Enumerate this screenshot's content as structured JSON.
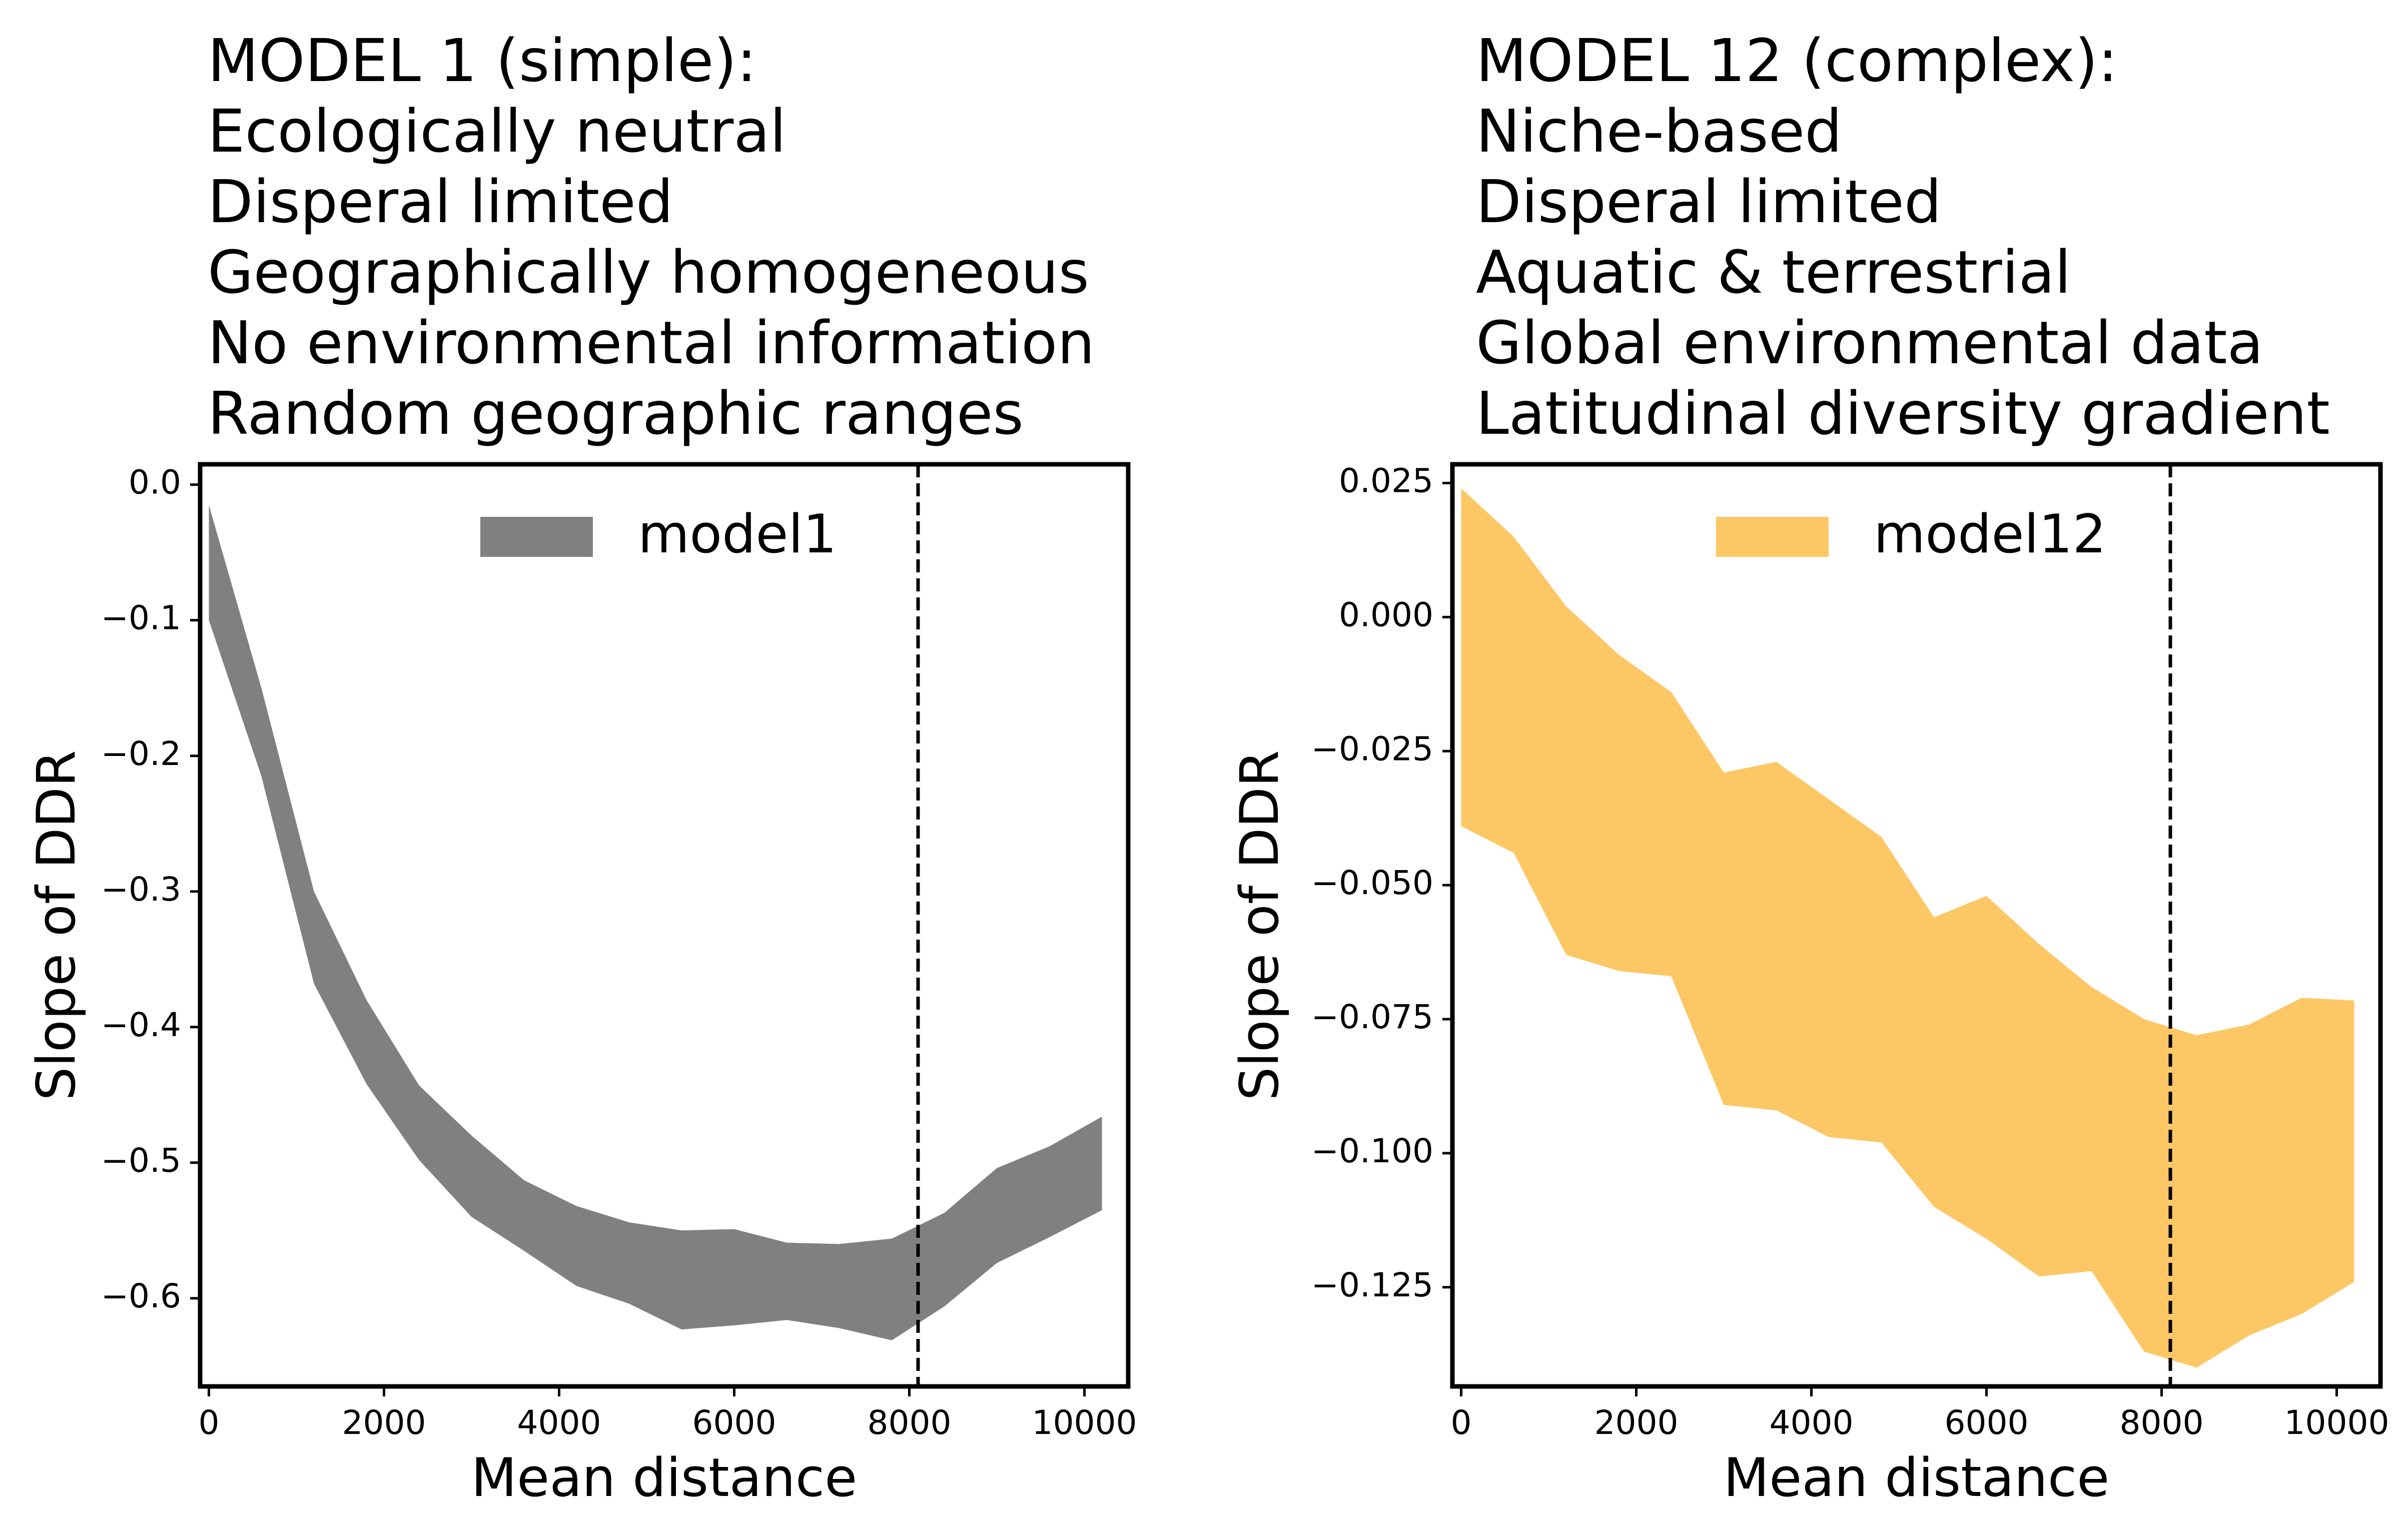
{
  "chart_data": [
    {
      "type": "area",
      "title_lines": [
        "MODEL 1 (simple):",
        "Ecologically neutral",
        "Disperal limited",
        "Geographically homogeneous",
        "No environmental information",
        "Random geographic ranges"
      ],
      "xlabel": "Mean distance",
      "ylabel": "Slope of DDR",
      "xlim": [
        -100,
        10500
      ],
      "ylim": [
        -0.665,
        0.015
      ],
      "xticks": [
        0,
        2000,
        4000,
        6000,
        8000,
        10000
      ],
      "xtick_labels": [
        "0",
        "2000",
        "4000",
        "6000",
        "8000",
        "10000"
      ],
      "yticks": [
        0.0,
        -0.1,
        -0.2,
        -0.3,
        -0.4,
        -0.5,
        -0.6
      ],
      "ytick_labels": [
        "0.0",
        "−0.1",
        "−0.2",
        "−0.3",
        "−0.4",
        "−0.5",
        "−0.6"
      ],
      "series": [
        {
          "name": "model1",
          "color": "#808080",
          "x": [
            0,
            600,
            1200,
            1800,
            2400,
            3000,
            3600,
            4200,
            4800,
            5400,
            6000,
            6600,
            7200,
            7800,
            8400,
            9000,
            9600,
            10200
          ],
          "upper": [
            -0.015,
            -0.15,
            -0.3,
            -0.38,
            -0.443,
            -0.48,
            -0.513,
            -0.532,
            -0.544,
            -0.55,
            -0.549,
            -0.559,
            -0.56,
            -0.556,
            -0.537,
            -0.504,
            -0.488,
            -0.466
          ],
          "lower": [
            -0.1,
            -0.215,
            -0.368,
            -0.442,
            -0.498,
            -0.54,
            -0.565,
            -0.591,
            -0.604,
            -0.623,
            -0.62,
            -0.616,
            -0.622,
            -0.631,
            -0.606,
            -0.574,
            -0.555,
            -0.535
          ]
        }
      ],
      "vline": {
        "x": 8100,
        "style": "dashed",
        "color": "#000000"
      },
      "legend": "upper center",
      "grid": false
    },
    {
      "type": "area",
      "title_lines": [
        "MODEL 12 (complex):",
        "Niche-based",
        "Disperal limited",
        "Aquatic & terrestrial",
        "Global environmental data",
        "Latitudinal diversity gradient"
      ],
      "xlabel": "Mean distance",
      "ylabel": "Slope of DDR",
      "xlim": [
        -100,
        10500
      ],
      "ylim": [
        -0.1435,
        0.0285
      ],
      "xticks": [
        0,
        2000,
        4000,
        6000,
        8000,
        10000
      ],
      "xtick_labels": [
        "0",
        "2000",
        "4000",
        "6000",
        "8000",
        "10000"
      ],
      "yticks": [
        0.025,
        0.0,
        -0.025,
        -0.05,
        -0.075,
        -0.1,
        -0.125
      ],
      "ytick_labels": [
        "0.025",
        "0.000",
        "−0.025",
        "−0.050",
        "−0.075",
        "−0.100",
        "−0.125"
      ],
      "series": [
        {
          "name": "model12",
          "color": "#FDC765",
          "x": [
            0,
            600,
            1200,
            1800,
            2400,
            3000,
            3600,
            4200,
            4800,
            5400,
            6000,
            6600,
            7200,
            7800,
            8400,
            9000,
            9600,
            10200
          ],
          "upper": [
            0.024,
            0.015,
            0.002,
            -0.007,
            -0.014,
            -0.029,
            -0.027,
            -0.034,
            -0.041,
            -0.056,
            -0.052,
            -0.061,
            -0.069,
            -0.075,
            -0.078,
            -0.076,
            -0.071,
            -0.0715
          ],
          "lower": [
            -0.039,
            -0.044,
            -0.063,
            -0.066,
            -0.067,
            -0.091,
            -0.092,
            -0.097,
            -0.098,
            -0.11,
            -0.116,
            -0.123,
            -0.122,
            -0.137,
            -0.14,
            -0.134,
            -0.13,
            -0.124
          ]
        }
      ],
      "vline": {
        "x": 8100,
        "style": "dashed",
        "color": "#000000"
      },
      "legend": "upper center",
      "grid": false
    }
  ]
}
